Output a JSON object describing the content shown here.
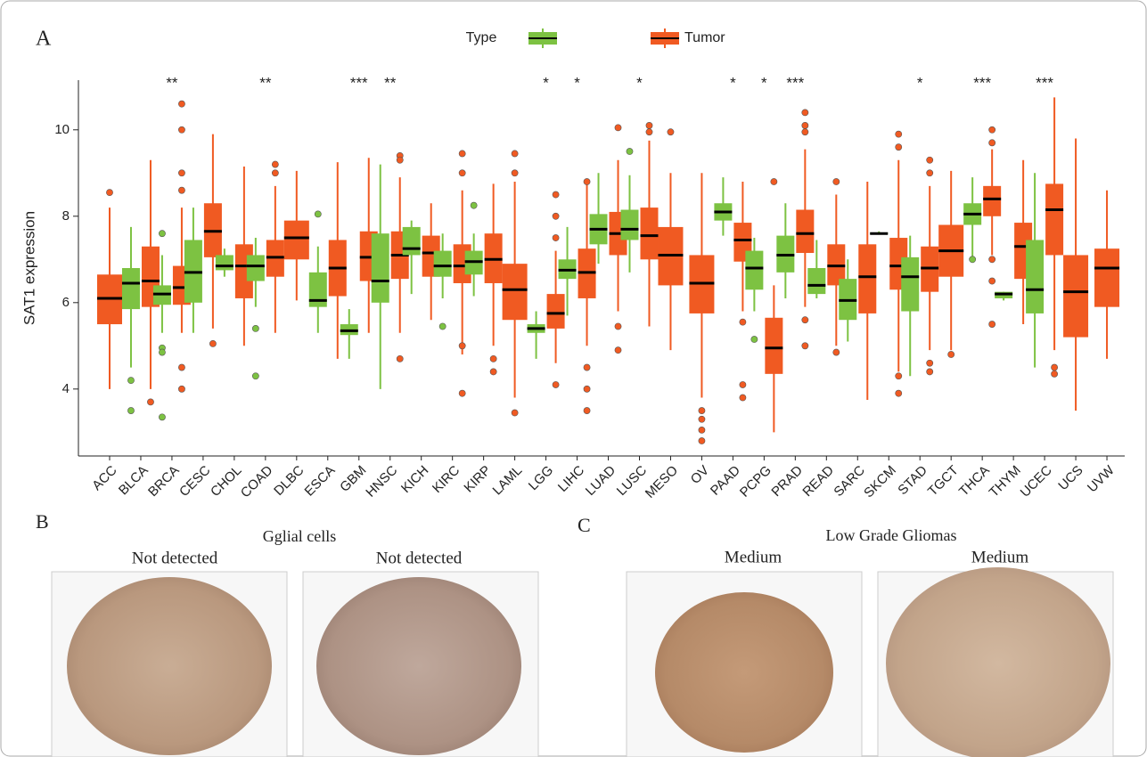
{
  "chart_data": {
    "type": "boxplot",
    "panel_label": "A",
    "ylabel": "SAT1 expression",
    "legend_title": "Type",
    "categories": [
      "ACC",
      "BLCA",
      "BRCA",
      "CESC",
      "CHOL",
      "COAD",
      "DLBC",
      "ESCA",
      "GBM",
      "HNSC",
      "KICH",
      "KIRC",
      "KIRP",
      "LAML",
      "LGG",
      "LIHC",
      "LUAD",
      "LUSC",
      "MESO",
      "OV",
      "PAAD",
      "PCPG",
      "PRAD",
      "READ",
      "SARC",
      "SKCM",
      "STAD",
      "TGCT",
      "THCA",
      "THYM",
      "UCEC",
      "UCS",
      "UVW"
    ],
    "significance": [
      null,
      null,
      "**",
      null,
      null,
      "**",
      null,
      null,
      "***",
      "**",
      null,
      null,
      null,
      null,
      "*",
      "*",
      null,
      "*",
      null,
      null,
      "*",
      "*",
      "***",
      null,
      null,
      null,
      "*",
      null,
      "***",
      null,
      "***",
      null,
      null
    ],
    "ylim": [
      2.45,
      11.15
    ],
    "yticks": [
      4,
      6,
      8,
      10
    ],
    "series": [
      {
        "name": null,
        "color": "#7dc242",
        "values": [
          null,
          [
            4.5,
            5.85,
            6.45,
            6.8,
            7.75
          ],
          [
            5.3,
            5.95,
            6.2,
            6.4,
            7.1
          ],
          [
            5.3,
            6.0,
            6.7,
            7.45,
            8.2
          ],
          [
            6.6,
            6.75,
            6.85,
            7.1,
            7.25
          ],
          [
            5.9,
            6.5,
            6.85,
            7.1,
            7.5
          ],
          null,
          [
            5.3,
            5.9,
            6.05,
            6.7,
            7.3
          ],
          [
            4.7,
            5.25,
            5.35,
            5.5,
            5.85
          ],
          [
            4.0,
            6.0,
            6.5,
            7.6,
            9.2
          ],
          [
            6.2,
            7.1,
            7.25,
            7.75,
            7.9
          ],
          [
            6.1,
            6.6,
            6.85,
            7.2,
            7.6
          ],
          [
            6.15,
            6.65,
            6.95,
            7.2,
            7.6
          ],
          null,
          [
            4.7,
            5.3,
            5.4,
            5.5,
            5.8
          ],
          [
            5.7,
            6.55,
            6.75,
            7.0,
            7.75
          ],
          [
            6.9,
            7.35,
            7.7,
            8.05,
            9.0
          ],
          [
            6.7,
            7.45,
            7.7,
            8.15,
            8.95
          ],
          null,
          null,
          [
            7.55,
            7.9,
            8.1,
            8.3,
            8.9
          ],
          [
            5.8,
            6.3,
            6.8,
            7.2,
            7.5
          ],
          [
            6.1,
            6.7,
            7.1,
            7.55,
            8.3
          ],
          [
            6.1,
            6.2,
            6.4,
            6.8,
            7.45
          ],
          [
            5.1,
            5.6,
            6.05,
            6.55,
            7.0
          ],
          [
            7.6,
            7.6,
            7.6,
            7.62,
            7.65
          ],
          [
            4.3,
            5.8,
            6.6,
            7.05,
            7.55
          ],
          null,
          [
            7.0,
            7.8,
            8.05,
            8.3,
            8.9
          ],
          [
            6.05,
            6.1,
            6.2,
            6.25,
            6.25
          ],
          [
            4.5,
            5.75,
            6.3,
            7.45,
            9.0
          ],
          null,
          null
        ],
        "outliers": [
          null,
          [
            4.2,
            3.5
          ],
          [
            7.6,
            4.95,
            4.85,
            3.35
          ],
          null,
          null,
          [
            5.4,
            4.3
          ],
          null,
          [
            8.05
          ],
          null,
          null,
          null,
          [
            5.45
          ],
          [
            8.25
          ],
          null,
          null,
          null,
          null,
          [
            9.5
          ],
          null,
          null,
          null,
          [
            5.15
          ],
          null,
          null,
          null,
          null,
          null,
          null,
          [
            7.0
          ],
          null,
          null,
          null,
          null
        ]
      },
      {
        "name": "Tumor",
        "color": "#f05a22",
        "values": [
          [
            4.0,
            5.5,
            6.1,
            6.65,
            8.2
          ],
          [
            4.0,
            5.9,
            6.5,
            7.3,
            9.3
          ],
          [
            5.3,
            5.95,
            6.35,
            6.85,
            8.2
          ],
          [
            5.4,
            7.05,
            7.65,
            8.3,
            9.9
          ],
          [
            5.0,
            6.1,
            6.85,
            7.35,
            9.15
          ],
          [
            5.3,
            6.6,
            7.05,
            7.45,
            8.7
          ],
          [
            6.05,
            7.0,
            7.5,
            7.9,
            9.05
          ],
          [
            4.7,
            6.15,
            6.8,
            7.45,
            9.25
          ],
          [
            5.3,
            6.5,
            7.05,
            7.65,
            9.35
          ],
          [
            5.3,
            6.55,
            7.1,
            7.65,
            8.9
          ],
          [
            5.6,
            6.6,
            7.15,
            7.55,
            8.3
          ],
          [
            4.8,
            6.45,
            6.85,
            7.35,
            8.6
          ],
          [
            5.0,
            6.45,
            7.0,
            7.6,
            8.75
          ],
          [
            3.8,
            5.6,
            6.3,
            6.9,
            8.8
          ],
          [
            4.6,
            5.4,
            5.75,
            6.2,
            7.2
          ],
          [
            5.0,
            6.1,
            6.7,
            7.25,
            8.8
          ],
          [
            5.8,
            7.1,
            7.6,
            8.1,
            9.3
          ],
          [
            5.45,
            7.0,
            7.55,
            8.2,
            9.75
          ],
          [
            4.9,
            6.4,
            7.1,
            7.75,
            9.0
          ],
          [
            3.8,
            5.75,
            6.45,
            7.1,
            9.0
          ],
          [
            5.8,
            6.95,
            7.45,
            7.85,
            8.8
          ],
          [
            3.0,
            4.35,
            4.95,
            5.65,
            6.4
          ],
          [
            5.9,
            7.15,
            7.6,
            8.15,
            9.55
          ],
          [
            5.0,
            6.4,
            6.85,
            7.35,
            8.5
          ],
          [
            3.75,
            5.75,
            6.6,
            7.35,
            8.8
          ],
          [
            4.4,
            6.3,
            6.85,
            7.5,
            9.3
          ],
          [
            4.9,
            6.25,
            6.8,
            7.3,
            8.7
          ],
          [
            4.9,
            6.6,
            7.2,
            7.8,
            9.05
          ],
          [
            7.1,
            8.0,
            8.4,
            8.7,
            9.55
          ],
          [
            5.5,
            6.55,
            7.3,
            7.85,
            9.3
          ],
          [
            4.9,
            7.1,
            8.15,
            8.75,
            10.75
          ],
          [
            3.5,
            5.2,
            6.25,
            7.1,
            9.8
          ],
          [
            4.7,
            5.9,
            6.8,
            7.25,
            8.6
          ]
        ],
        "outliers": [
          [
            8.55
          ],
          [
            3.7
          ],
          [
            10.6,
            10.0,
            9.0,
            8.6,
            4.5,
            4.0
          ],
          [
            5.05
          ],
          null,
          [
            9.2,
            9.0
          ],
          null,
          null,
          null,
          [
            9.4,
            9.3,
            4.7
          ],
          null,
          [
            9.45,
            9.0,
            5.0,
            3.9
          ],
          [
            4.7,
            4.4
          ],
          [
            9.45,
            9.0,
            3.45
          ],
          [
            8.5,
            8.0,
            7.5,
            4.1
          ],
          [
            8.8,
            4.5,
            4.0,
            3.5
          ],
          [
            10.05,
            5.45,
            4.9
          ],
          [
            10.1,
            9.95
          ],
          [
            9.95
          ],
          [
            3.5,
            3.3,
            3.05,
            2.8
          ],
          [
            5.55,
            4.1,
            3.8
          ],
          [
            8.8
          ],
          [
            10.4,
            10.1,
            9.95,
            5.6,
            5.0
          ],
          [
            8.8,
            4.85
          ],
          null,
          [
            9.9,
            9.6,
            4.3,
            3.9
          ],
          [
            9.3,
            9.0,
            4.6,
            4.4
          ],
          [
            4.8
          ],
          [
            10.0,
            9.7,
            7.0,
            6.5,
            5.5
          ],
          null,
          [
            4.5,
            4.35
          ],
          null,
          null
        ]
      }
    ]
  },
  "panels": [
    {
      "label": "B",
      "title": "Gglial cells",
      "captions": [
        "Not detected",
        "Not detected"
      ]
    },
    {
      "label": "C",
      "title": "Low Grade Gliomas",
      "captions": [
        "Medium",
        "Medium"
      ]
    }
  ]
}
